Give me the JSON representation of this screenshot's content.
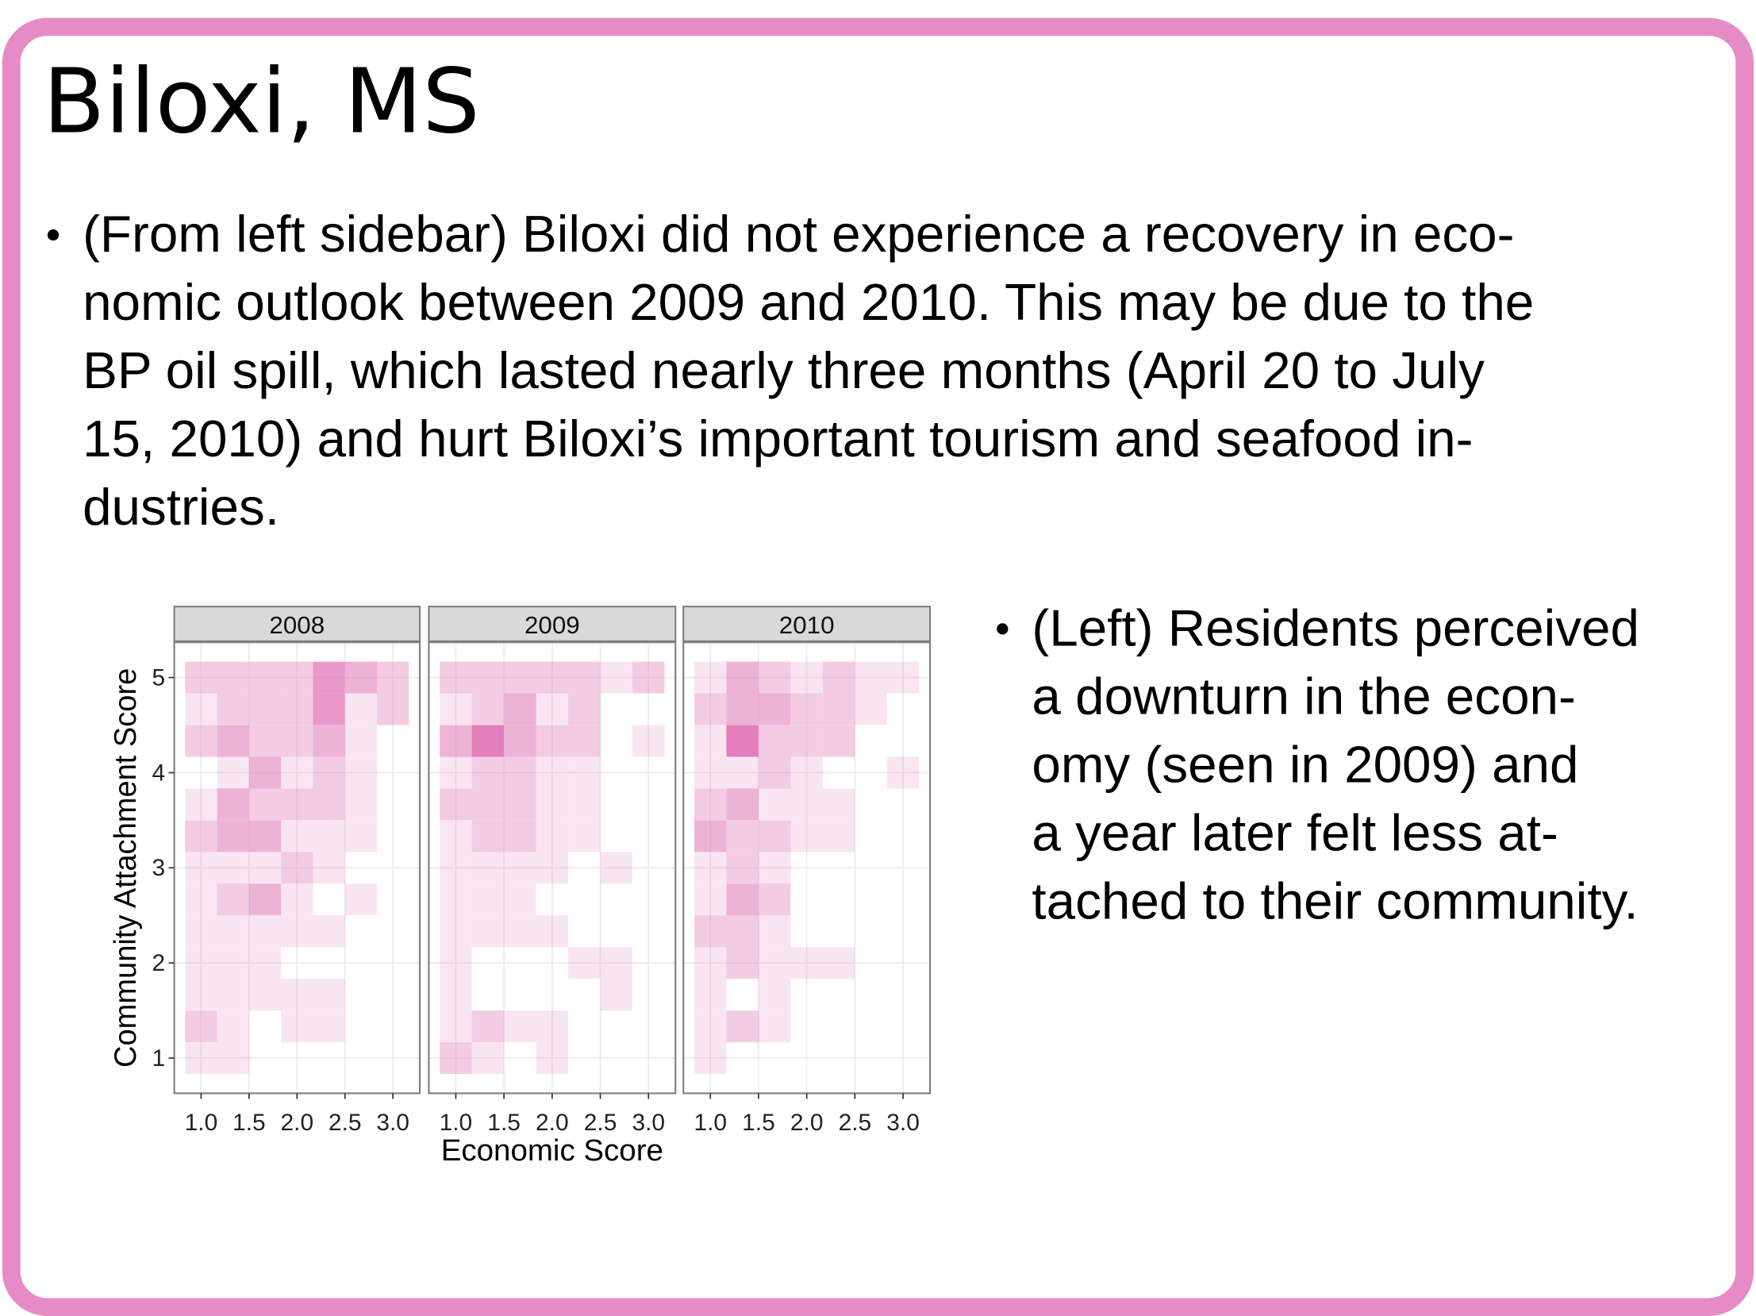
{
  "slide": {
    "title": "Biloxi, MS",
    "bullets": [
      {
        "lines": [
          "(From left sidebar) Biloxi did not experience a recovery in eco-",
          "nomic outlook between 2009 and 2010. This may be due to the",
          "BP oil spill, which lasted nearly three months (April 20 to July",
          "15, 2010) and hurt Biloxi’s important tourism and seafood in-",
          "dustries."
        ]
      },
      {
        "lines": [
          "(Left) Residents perceived",
          "a downturn in the econ-",
          "omy (seen in 2009) and",
          "a year later felt less at-",
          "tached to their community."
        ]
      }
    ]
  },
  "chart_data": {
    "type": "heatmap",
    "facets": [
      "2008",
      "2009",
      "2010"
    ],
    "xlabel": "Economic Score",
    "ylabel": "Community Attachment Score",
    "x": [
      1.0,
      1.333,
      1.667,
      2.0,
      2.333,
      2.667,
      3.0
    ],
    "y": [
      5.0,
      4.667,
      4.333,
      4.0,
      3.667,
      3.333,
      3.0,
      2.667,
      2.333,
      2.0,
      1.667,
      1.333,
      1.0
    ],
    "values": [
      [
        [
          2,
          2,
          2,
          2,
          4,
          3,
          2
        ],
        [
          1,
          2,
          2,
          2,
          4,
          1,
          2
        ],
        [
          2,
          3,
          2,
          2,
          3,
          1,
          0
        ],
        [
          0,
          1,
          3,
          1,
          2,
          1,
          0
        ],
        [
          1,
          3,
          2,
          2,
          2,
          1,
          0
        ],
        [
          2,
          3,
          3,
          1,
          1,
          1,
          0
        ],
        [
          1,
          1,
          1,
          2,
          1,
          0,
          0
        ],
        [
          1,
          2,
          3,
          1,
          0,
          1,
          0
        ],
        [
          1,
          1,
          1,
          1,
          1,
          0,
          0
        ],
        [
          1,
          1,
          1,
          0,
          0,
          0,
          0
        ],
        [
          1,
          1,
          1,
          1,
          1,
          0,
          0
        ],
        [
          2,
          1,
          0,
          1,
          1,
          0,
          0
        ],
        [
          1,
          1,
          0,
          0,
          0,
          0,
          0
        ]
      ],
      [
        [
          2,
          2,
          2,
          2,
          2,
          1,
          2
        ],
        [
          1,
          2,
          3,
          1,
          2,
          0,
          0
        ],
        [
          3,
          5,
          3,
          2,
          2,
          0,
          1
        ],
        [
          1,
          2,
          2,
          1,
          1,
          0,
          0
        ],
        [
          2,
          2,
          2,
          1,
          1,
          0,
          0
        ],
        [
          1,
          2,
          2,
          1,
          1,
          0,
          0
        ],
        [
          1,
          1,
          1,
          1,
          0,
          1,
          0
        ],
        [
          1,
          1,
          1,
          0,
          0,
          0,
          0
        ],
        [
          1,
          1,
          1,
          1,
          0,
          0,
          0
        ],
        [
          1,
          0,
          0,
          0,
          1,
          1,
          0
        ],
        [
          1,
          0,
          0,
          0,
          0,
          1,
          0
        ],
        [
          1,
          2,
          1,
          1,
          0,
          0,
          0
        ],
        [
          2,
          1,
          0,
          1,
          0,
          0,
          0
        ]
      ],
      [
        [
          1,
          3,
          2,
          1,
          2,
          1,
          1
        ],
        [
          2,
          3,
          3,
          2,
          2,
          1,
          0
        ],
        [
          1,
          5,
          2,
          2,
          2,
          0,
          0
        ],
        [
          1,
          1,
          2,
          1,
          0,
          0,
          1
        ],
        [
          2,
          3,
          1,
          1,
          1,
          0,
          0
        ],
        [
          3,
          2,
          2,
          1,
          1,
          0,
          0
        ],
        [
          1,
          2,
          1,
          0,
          0,
          0,
          0
        ],
        [
          1,
          3,
          2,
          0,
          0,
          0,
          0
        ],
        [
          2,
          2,
          1,
          0,
          0,
          0,
          0
        ],
        [
          1,
          2,
          1,
          1,
          1,
          0,
          0
        ],
        [
          1,
          0,
          1,
          0,
          0,
          0,
          0
        ],
        [
          1,
          2,
          1,
          0,
          0,
          0,
          0
        ],
        [
          1,
          0,
          0,
          0,
          0,
          0,
          0
        ]
      ]
    ],
    "color": "#e27fbc",
    "xlim": [
      0.72,
      3.28
    ],
    "ylim": [
      0.63,
      5.37
    ],
    "xticks": [
      {
        "value": 1,
        "label": "1.0"
      },
      1.5,
      {
        "value": 2,
        "label": "2.0"
      },
      2.5,
      {
        "value": 3,
        "label": "3.0"
      }
    ],
    "yticks": [
      1,
      2,
      3,
      4,
      5
    ],
    "grid": true
  }
}
